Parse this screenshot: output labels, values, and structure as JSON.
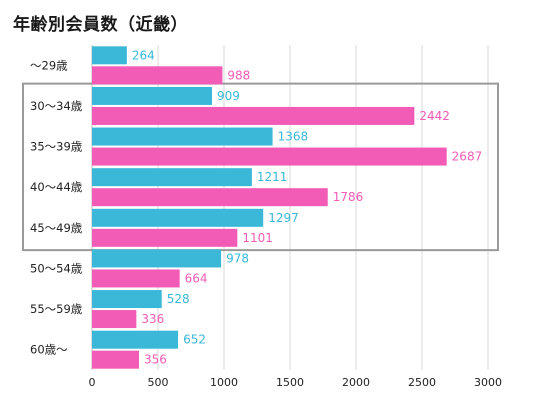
{
  "chart_data": {
    "type": "bar",
    "orientation": "horizontal",
    "title": "年齢別会員数（近畿）",
    "categories": [
      "～29歳",
      "30～34歳",
      "35～39歳",
      "40～44歳",
      "45～49歳",
      "50～54歳",
      "55～59歳",
      "60歳～"
    ],
    "series": [
      {
        "values": [
          264,
          909,
          1368,
          1211,
          1297,
          978,
          528,
          652
        ]
      },
      {
        "values": [
          988,
          2442,
          2687,
          1786,
          1101,
          664,
          336,
          356
        ]
      }
    ],
    "xlim": [
      0,
      3000
    ],
    "xticks": [
      "0",
      "500",
      "1000",
      "1500",
      "2000",
      "2500",
      "3000"
    ],
    "grid": true,
    "highlight_categories": [
      "30～34歳",
      "35～39歳",
      "40～44歳",
      "45～49歳"
    ],
    "colors": {
      "series1": "#3bb8d8",
      "series2": "#f25cb6",
      "highlight_border": "#9a9a9a",
      "grid": "#d9d9d9"
    }
  }
}
